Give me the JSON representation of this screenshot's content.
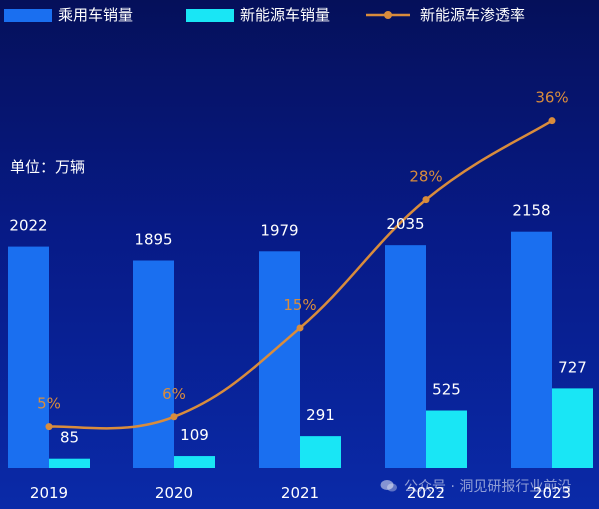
{
  "chart_data": {
    "type": "bar",
    "categories": [
      "2019",
      "2020",
      "2021",
      "2022",
      "2023"
    ],
    "series": [
      {
        "name": "乘用车销量",
        "kind": "bar",
        "color": "#1a6ff0",
        "values": [
          2022,
          1895,
          1979,
          2035,
          2158
        ]
      },
      {
        "name": "新能源车销量",
        "kind": "bar",
        "color": "#19e6f5",
        "values": [
          85,
          109,
          291,
          525,
          727
        ]
      },
      {
        "name": "新能源车渗透率",
        "kind": "line",
        "color": "#d98c3c",
        "values": [
          5,
          6,
          15,
          28,
          36
        ],
        "unit": "%"
      }
    ],
    "unit_label": "单位：万辆",
    "legend_position": "top",
    "grid": false
  },
  "watermark": {
    "text": "公众号 · 洞见研报行业前沿",
    "icon": "wechat-icon"
  }
}
